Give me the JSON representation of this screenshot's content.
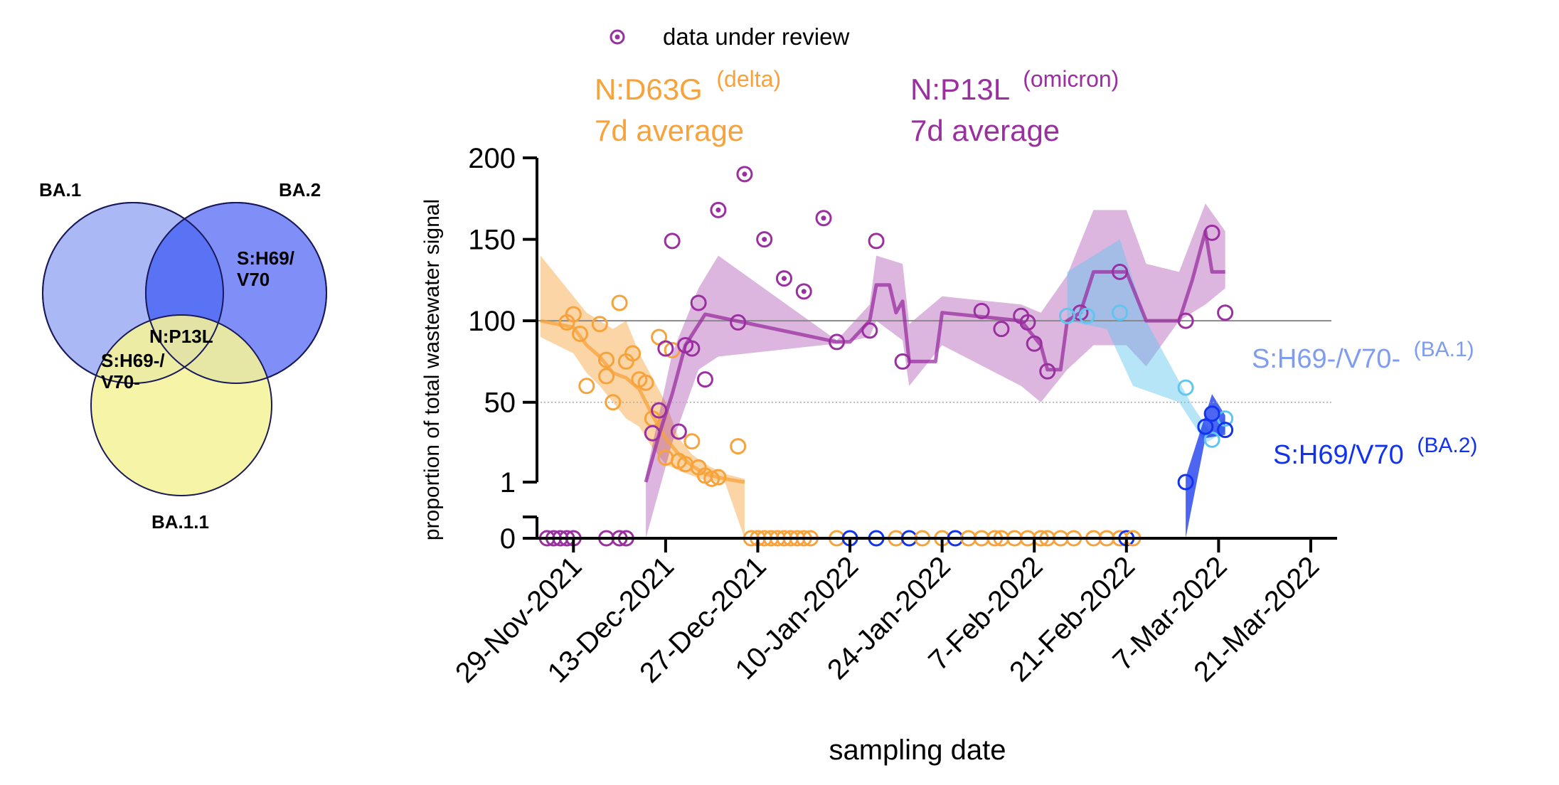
{
  "venn": {
    "sets": [
      "BA.1",
      "BA.2",
      "BA.1.1"
    ],
    "regions": [
      "N:P13L",
      "S:H69/",
      "V70",
      "S:H69-/",
      "V70-"
    ],
    "colors": {
      "ba1": "#aab8f6",
      "ba2": "#7f8ff7",
      "ba11": "#f5f39a",
      "overlap": "#5a73f5"
    }
  },
  "legend": {
    "review_label": "data under review"
  },
  "chart_data": {
    "type": "scatter",
    "xlabel": "sampling date",
    "ylabel": "proportion of total wastewater signal",
    "x_ticks": [
      "29-Nov-2021",
      "13-Dec-2021",
      "27-Dec-2021",
      "10-Jan-2022",
      "24-Jan-2022",
      "7-Feb-2022",
      "21-Feb-2022",
      "7-Mar-2022",
      "21-Mar-2022"
    ],
    "x_range": [
      "2021-11-24",
      "2022-03-25"
    ],
    "y_ticks": [
      "0",
      "1",
      "50",
      "100",
      "150",
      "200"
    ],
    "y_range": [
      0,
      200
    ],
    "y_axis_break": true,
    "reference_line": 100,
    "dotted_line": 50,
    "series_labels": {
      "delta_name": "N:D63G",
      "delta_sup": "(delta)",
      "delta_avg": "7d average",
      "omicron_name": "N:P13L",
      "omicron_sup": "(omicron)",
      "omicron_avg": "7d average",
      "ba1_name": "S:H69-/V70-",
      "ba1_sup": "(BA.1)",
      "ba2_name": "S:H69/V70",
      "ba2_sup": "(BA.2)"
    },
    "colors": {
      "delta": "#f7a23a",
      "omicron": "#9a2fa0",
      "ba1": "#5fc6f0",
      "ba1_label": "#7e9cf2",
      "ba2": "#1133ee",
      "ref": "#888888"
    },
    "series": [
      {
        "name": "N:D63G",
        "kind": "points",
        "color": "delta",
        "points": [
          [
            "2021-11-29",
            104
          ],
          [
            "2021-11-28",
            99
          ],
          [
            "2021-11-30",
            92
          ],
          [
            "2021-12-01",
            60
          ],
          [
            "2021-12-03",
            98
          ],
          [
            "2021-12-04",
            66
          ],
          [
            "2021-12-04",
            76
          ],
          [
            "2021-12-05",
            50
          ],
          [
            "2021-12-06",
            111
          ],
          [
            "2021-12-07",
            75
          ],
          [
            "2021-12-08",
            80
          ],
          [
            "2021-12-09",
            64
          ],
          [
            "2021-12-10",
            62
          ],
          [
            "2021-12-11",
            40
          ],
          [
            "2021-12-12",
            90
          ],
          [
            "2021-12-13",
            16
          ],
          [
            "2021-12-14",
            82
          ],
          [
            "2021-12-15",
            14
          ],
          [
            "2021-12-16",
            12
          ],
          [
            "2021-12-17",
            26
          ],
          [
            "2021-12-18",
            10
          ],
          [
            "2021-12-19",
            5
          ],
          [
            "2021-12-20",
            3
          ],
          [
            "2021-12-21",
            4
          ],
          [
            "2021-12-24",
            23
          ]
        ]
      },
      {
        "name": "N:D63G 7d average",
        "kind": "line",
        "color": "delta",
        "points": [
          [
            "2021-11-24",
            100
          ],
          [
            "2021-11-29",
            96
          ],
          [
            "2021-12-01",
            85
          ],
          [
            "2021-12-03",
            78
          ],
          [
            "2021-12-05",
            68
          ],
          [
            "2021-12-07",
            65
          ],
          [
            "2021-12-09",
            58
          ],
          [
            "2021-12-11",
            42
          ],
          [
            "2021-12-13",
            28
          ],
          [
            "2021-12-15",
            18
          ],
          [
            "2021-12-17",
            11
          ],
          [
            "2021-12-19",
            6
          ],
          [
            "2021-12-22",
            3
          ],
          [
            "2021-12-25",
            1
          ]
        ],
        "upper": [
          [
            "2021-11-24",
            140
          ],
          [
            "2021-11-29",
            115
          ],
          [
            "2021-12-01",
            105
          ],
          [
            "2021-12-03",
            100
          ],
          [
            "2021-12-05",
            95
          ],
          [
            "2021-12-07",
            100
          ],
          [
            "2021-12-09",
            80
          ],
          [
            "2021-12-11",
            65
          ],
          [
            "2021-12-13",
            50
          ],
          [
            "2021-12-15",
            28
          ],
          [
            "2021-12-17",
            18
          ],
          [
            "2021-12-19",
            12
          ],
          [
            "2021-12-22",
            6
          ],
          [
            "2021-12-25",
            3
          ]
        ],
        "lower": [
          [
            "2021-11-24",
            90
          ],
          [
            "2021-11-29",
            80
          ],
          [
            "2021-12-01",
            68
          ],
          [
            "2021-12-03",
            60
          ],
          [
            "2021-12-05",
            50
          ],
          [
            "2021-12-07",
            40
          ],
          [
            "2021-12-09",
            35
          ],
          [
            "2021-12-11",
            22
          ],
          [
            "2021-12-13",
            12
          ],
          [
            "2021-12-15",
            8
          ],
          [
            "2021-12-17",
            5
          ],
          [
            "2021-12-19",
            2
          ],
          [
            "2021-12-22",
            1
          ],
          [
            "2021-12-25",
            0
          ]
        ]
      },
      {
        "name": "N:P13L",
        "kind": "points",
        "color": "omicron",
        "points": [
          [
            "2021-12-11",
            31
          ],
          [
            "2021-12-12",
            45
          ],
          [
            "2021-12-13",
            83
          ],
          [
            "2021-12-14",
            149
          ],
          [
            "2021-12-15",
            32
          ],
          [
            "2021-12-16",
            85
          ],
          [
            "2021-12-17",
            83
          ],
          [
            "2021-12-18",
            111
          ],
          [
            "2021-12-19",
            64
          ],
          [
            "2021-12-24",
            99
          ],
          [
            "2022-01-08",
            87
          ],
          [
            "2022-01-13",
            94
          ],
          [
            "2022-01-14",
            149
          ],
          [
            "2022-01-18",
            75
          ],
          [
            "2022-01-30",
            106
          ],
          [
            "2022-02-02",
            95
          ],
          [
            "2022-02-05",
            103
          ],
          [
            "2022-02-06",
            99
          ],
          [
            "2022-02-07",
            86
          ],
          [
            "2022-02-09",
            69
          ],
          [
            "2022-02-14",
            105
          ],
          [
            "2022-02-20",
            130
          ],
          [
            "2022-03-02",
            100
          ],
          [
            "2022-03-06",
            154
          ],
          [
            "2022-03-08",
            105
          ]
        ]
      },
      {
        "name": "data under review",
        "kind": "points",
        "color": "omicron",
        "marker": "dot",
        "points": [
          [
            "2021-12-21",
            168
          ],
          [
            "2021-12-25",
            190
          ],
          [
            "2021-12-28",
            150
          ],
          [
            "2021-12-31",
            126
          ],
          [
            "2022-01-03",
            118
          ],
          [
            "2022-01-06",
            163
          ]
        ]
      },
      {
        "name": "N:P13L 7d average",
        "kind": "line",
        "color": "omicron",
        "points": [
          [
            "2021-12-10",
            1
          ],
          [
            "2021-12-12",
            30
          ],
          [
            "2021-12-14",
            55
          ],
          [
            "2021-12-16",
            85
          ],
          [
            "2021-12-19",
            104
          ],
          [
            "2022-01-08",
            87
          ],
          [
            "2022-01-10",
            87
          ],
          [
            "2022-01-13",
            100
          ],
          [
            "2022-01-14",
            122
          ],
          [
            "2022-01-16",
            122
          ],
          [
            "2022-01-17",
            105
          ],
          [
            "2022-01-18",
            112
          ],
          [
            "2022-01-19",
            75
          ],
          [
            "2022-01-23",
            75
          ],
          [
            "2022-01-24",
            105
          ],
          [
            "2022-02-05",
            100
          ],
          [
            "2022-02-08",
            85
          ],
          [
            "2022-02-09",
            70
          ],
          [
            "2022-02-11",
            70
          ],
          [
            "2022-02-12",
            100
          ],
          [
            "2022-02-14",
            105
          ],
          [
            "2022-02-16",
            130
          ],
          [
            "2022-02-21",
            130
          ],
          [
            "2022-02-24",
            100
          ],
          [
            "2022-03-01",
            100
          ],
          [
            "2022-03-03",
            125
          ],
          [
            "2022-03-05",
            155
          ],
          [
            "2022-03-06",
            130
          ],
          [
            "2022-03-08",
            130
          ]
        ],
        "upper": [
          [
            "2021-12-10",
            5
          ],
          [
            "2021-12-14",
            80
          ],
          [
            "2021-12-18",
            120
          ],
          [
            "2021-12-21",
            140
          ],
          [
            "2022-01-08",
            88
          ],
          [
            "2022-01-13",
            110
          ],
          [
            "2022-01-14",
            140
          ],
          [
            "2022-01-18",
            135
          ],
          [
            "2022-01-19",
            98
          ],
          [
            "2022-01-24",
            115
          ],
          [
            "2022-02-05",
            110
          ],
          [
            "2022-02-08",
            105
          ],
          [
            "2022-02-12",
            128
          ],
          [
            "2022-02-16",
            168
          ],
          [
            "2022-02-21",
            168
          ],
          [
            "2022-02-24",
            135
          ],
          [
            "2022-03-01",
            130
          ],
          [
            "2022-03-05",
            172
          ],
          [
            "2022-03-08",
            155
          ]
        ],
        "lower": [
          [
            "2021-12-10",
            0
          ],
          [
            "2021-12-14",
            25
          ],
          [
            "2021-12-18",
            70
          ],
          [
            "2021-12-21",
            78
          ],
          [
            "2022-01-08",
            86
          ],
          [
            "2022-01-13",
            90
          ],
          [
            "2022-01-14",
            100
          ],
          [
            "2022-01-18",
            88
          ],
          [
            "2022-01-19",
            60
          ],
          [
            "2022-01-24",
            85
          ],
          [
            "2022-02-05",
            60
          ],
          [
            "2022-02-08",
            50
          ],
          [
            "2022-02-12",
            70
          ],
          [
            "2022-02-16",
            85
          ],
          [
            "2022-02-21",
            85
          ],
          [
            "2022-02-24",
            72
          ],
          [
            "2022-03-01",
            100
          ],
          [
            "2022-03-05",
            110
          ],
          [
            "2022-03-08",
            120
          ]
        ]
      },
      {
        "name": "S:H69-/V70-",
        "kind": "points",
        "color": "ba1",
        "points": [
          [
            "2022-02-12",
            103
          ],
          [
            "2022-02-15",
            103
          ],
          [
            "2022-02-20",
            105
          ],
          [
            "2022-03-02",
            59
          ],
          [
            "2022-03-06",
            27
          ],
          [
            "2022-03-08",
            40
          ]
        ]
      },
      {
        "name": "S:H69-/V70- band",
        "kind": "band",
        "color": "ba1",
        "upper": [
          [
            "2022-02-12",
            130
          ],
          [
            "2022-02-20",
            150
          ],
          [
            "2022-02-24",
            100
          ],
          [
            "2022-03-03",
            48
          ],
          [
            "2022-03-06",
            30
          ],
          [
            "2022-03-08",
            42
          ]
        ],
        "lower": [
          [
            "2022-02-12",
            100
          ],
          [
            "2022-02-18",
            95
          ],
          [
            "2022-02-22",
            60
          ],
          [
            "2022-03-01",
            50
          ],
          [
            "2022-03-05",
            25
          ],
          [
            "2022-03-08",
            32
          ]
        ]
      },
      {
        "name": "S:H69/V70",
        "kind": "points",
        "color": "ba2",
        "points": [
          [
            "2022-03-02",
            1
          ],
          [
            "2022-03-06",
            43
          ],
          [
            "2022-03-08",
            33
          ],
          [
            "2022-03-05",
            35
          ]
        ]
      },
      {
        "name": "S:H69/V70 band",
        "kind": "band",
        "color": "ba2",
        "upper": [
          [
            "2022-03-02",
            4
          ],
          [
            "2022-03-06",
            55
          ],
          [
            "2022-03-08",
            42
          ]
        ],
        "lower": [
          [
            "2022-03-02",
            0
          ],
          [
            "2022-03-05",
            28
          ],
          [
            "2022-03-08",
            30
          ]
        ]
      },
      {
        "name": "zero values",
        "kind": "points",
        "zero": true,
        "points": [
          [
            "2021-11-25",
            "omicron"
          ],
          [
            "2021-11-26",
            "omicron"
          ],
          [
            "2021-11-27",
            "omicron"
          ],
          [
            "2021-11-28",
            "omicron"
          ],
          [
            "2021-11-29",
            "omicron"
          ],
          [
            "2021-12-04",
            "omicron"
          ],
          [
            "2021-12-06",
            "omicron"
          ],
          [
            "2021-12-07",
            "omicron"
          ],
          [
            "2021-12-26",
            "delta"
          ],
          [
            "2021-12-27",
            "delta"
          ],
          [
            "2021-12-28",
            "delta"
          ],
          [
            "2021-12-29",
            "delta"
          ],
          [
            "2021-12-30",
            "delta"
          ],
          [
            "2021-12-31",
            "delta"
          ],
          [
            "2022-01-01",
            "delta"
          ],
          [
            "2022-01-02",
            "delta"
          ],
          [
            "2022-01-03",
            "delta"
          ],
          [
            "2022-01-04",
            "delta"
          ],
          [
            "2022-01-08",
            "delta"
          ],
          [
            "2022-01-10",
            "ba2"
          ],
          [
            "2022-01-14",
            "ba2"
          ],
          [
            "2022-01-17",
            "delta"
          ],
          [
            "2022-01-19",
            "ba2"
          ],
          [
            "2022-01-21",
            "delta"
          ],
          [
            "2022-01-24",
            "delta"
          ],
          [
            "2022-01-26",
            "ba2"
          ],
          [
            "2022-01-28",
            "delta"
          ],
          [
            "2022-01-30",
            "delta"
          ],
          [
            "2022-02-01",
            "delta"
          ],
          [
            "2022-02-02",
            "delta"
          ],
          [
            "2022-02-04",
            "delta"
          ],
          [
            "2022-02-06",
            "delta"
          ],
          [
            "2022-02-08",
            "delta"
          ],
          [
            "2022-02-09",
            "delta"
          ],
          [
            "2022-02-11",
            "delta"
          ],
          [
            "2022-02-13",
            "delta"
          ],
          [
            "2022-02-16",
            "delta"
          ],
          [
            "2022-02-18",
            "delta"
          ],
          [
            "2022-02-20",
            "delta"
          ],
          [
            "2022-02-21",
            "ba2"
          ],
          [
            "2022-02-22",
            "delta"
          ]
        ]
      }
    ]
  }
}
